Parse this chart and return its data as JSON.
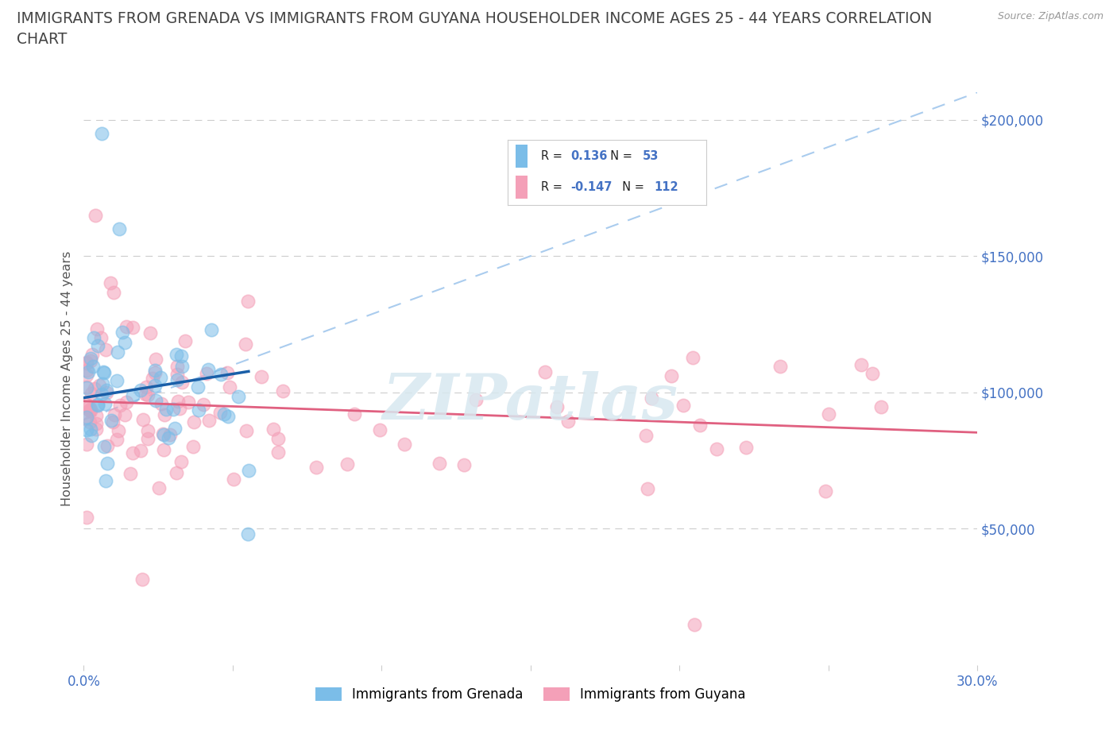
{
  "title_line1": "IMMIGRANTS FROM GRENADA VS IMMIGRANTS FROM GUYANA HOUSEHOLDER INCOME AGES 25 - 44 YEARS CORRELATION",
  "title_line2": "CHART",
  "ylabel": "Householder Income Ages 25 - 44 years",
  "source": "Source: ZipAtlas.com",
  "watermark": "ZIPatlas",
  "legend_label1": "Immigrants from Grenada",
  "legend_label2": "Immigrants from Guyana",
  "color1": "#7bbde8",
  "color2": "#f4a0b8",
  "trendline1_color": "#1a5fa8",
  "trendline2_color": "#e06080",
  "dashed_line_color": "#aaccee",
  "background_color": "#ffffff",
  "title_color": "#444444",
  "title_fontsize": 13.5,
  "axis_label_color": "#555555",
  "tick_label_color": "#4472c4",
  "R1": 0.136,
  "N1": 53,
  "R2": -0.147,
  "N2": 112
}
